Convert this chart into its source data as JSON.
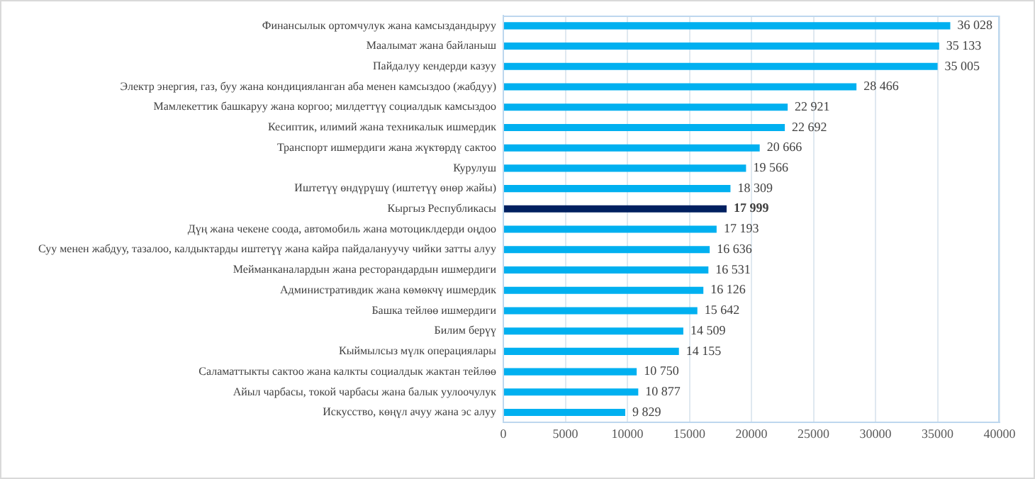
{
  "chart_data": {
    "type": "bar",
    "orientation": "horizontal",
    "categories": [
      "Финансылык ортомчулук жана камсыздандыруу",
      "Маалымат жана байланыш",
      "Пайдалуу кендерди казуу",
      "Электр энергия, газ, буу жана кондицияланган аба менен камсыздоо (жабдуу)",
      "Мамлекеттик башкаруу жана коргоо; милдеттүү социалдык камсыздоо",
      "Кесиптик, илимий жана техникалык ишмердик",
      "Транспорт ишмердиги жана жүктөрдү сактоо",
      "Курулуш",
      "Иштетүү өндүрүшү (иштетүү өнөр жайы)",
      "Кыргыз Республикасы",
      "Дүң жана чекене соода, автомобиль жана мотоциклдерди оңдоо",
      "Суу менен жабдуу, тазалоо, калдыктарды иштетүү жана кайра пайдалануучу чийки затты алуу",
      "Мейманканалардын жана ресторандардын ишмердиги",
      "Административдик жана көмөкчү ишмердик",
      "Башка тейлөө ишмердиги",
      "Билим берүү",
      "Кыймылсыз мүлк операциялары",
      "Саламаттыкты сактоо жана калкты социалдык жактан тейлөө",
      "Айыл чарбасы, токой чарбасы жана балык уулоочулук",
      "Искусство, көңүл ачуу жана эс алуу"
    ],
    "values": [
      36028,
      35133,
      35005,
      28466,
      22921,
      22692,
      20666,
      19566,
      18309,
      17999,
      17193,
      16636,
      16531,
      16126,
      15642,
      14509,
      14155,
      10750,
      10877,
      9829
    ],
    "value_labels": [
      "36 028",
      "35 133",
      "35 005",
      "28 466",
      "22 921",
      "22 692",
      "20 666",
      "19 566",
      "18 309",
      "17 999",
      "17 193",
      "16 636",
      "16 531",
      "16 126",
      "15 642",
      "14 509",
      "14 155",
      "10 750",
      "10 877",
      "9 829"
    ],
    "colors": [
      "#00b0f0",
      "#00b0f0",
      "#00b0f0",
      "#00b0f0",
      "#00b0f0",
      "#00b0f0",
      "#00b0f0",
      "#00b0f0",
      "#00b0f0",
      "#002060",
      "#00b0f0",
      "#00b0f0",
      "#00b0f0",
      "#00b0f0",
      "#00b0f0",
      "#00b0f0",
      "#00b0f0",
      "#00b0f0",
      "#00b0f0",
      "#00b0f0"
    ],
    "xlim": [
      0,
      40000
    ],
    "xticks": [
      0,
      5000,
      10000,
      15000,
      20000,
      25000,
      30000,
      35000,
      40000
    ],
    "grid": "x"
  }
}
